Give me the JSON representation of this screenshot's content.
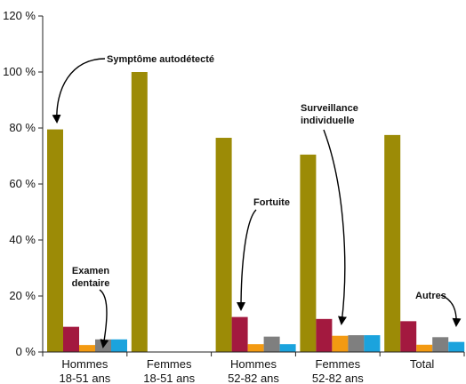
{
  "chart_data": {
    "type": "bar",
    "categories": [
      [
        "Hommes",
        "18-51 ans"
      ],
      [
        "Femmes",
        "18-51 ans"
      ],
      [
        "Hommes",
        "52-82 ans"
      ],
      [
        "Femmes",
        "52-82 ans"
      ],
      [
        "Total"
      ]
    ],
    "series": [
      {
        "color": "#9c8b06",
        "values": [
          79.5,
          100,
          76.5,
          70.5,
          77.5
        ]
      },
      {
        "color": "#a3193f",
        "values": [
          9,
          0,
          12.5,
          11.8,
          11
        ]
      },
      {
        "color": "#f39a12",
        "values": [
          2.5,
          0,
          2.8,
          5.8,
          2.6
        ]
      },
      {
        "color": "#7f7f7f",
        "values": [
          4.5,
          0,
          5.5,
          6,
          5.3
        ]
      },
      {
        "color": "#1ba3dd",
        "values": [
          4.5,
          0,
          2.8,
          6,
          3.6
        ]
      }
    ],
    "ylim": [
      0,
      120
    ],
    "yticks": [
      0,
      20,
      40,
      60,
      80,
      100,
      120
    ],
    "ytick_labels": [
      "0 %",
      "20 %",
      "40 %",
      "60 %",
      "80 %",
      "100 %",
      "120 %"
    ],
    "grid": false,
    "annotations": [
      {
        "lines": [
          "Symptôme autodétecté"
        ],
        "category": 0,
        "series": 0
      },
      {
        "lines": [
          "Examen",
          "dentaire"
        ],
        "category": 0,
        "series": 3
      },
      {
        "lines": [
          "Fortuite"
        ],
        "category": 2,
        "series": 1
      },
      {
        "lines": [
          "Surveillance",
          "individuelle"
        ],
        "category": 3,
        "series": 2
      },
      {
        "lines": [
          "Autres"
        ],
        "category": 4,
        "series": 4
      }
    ]
  }
}
